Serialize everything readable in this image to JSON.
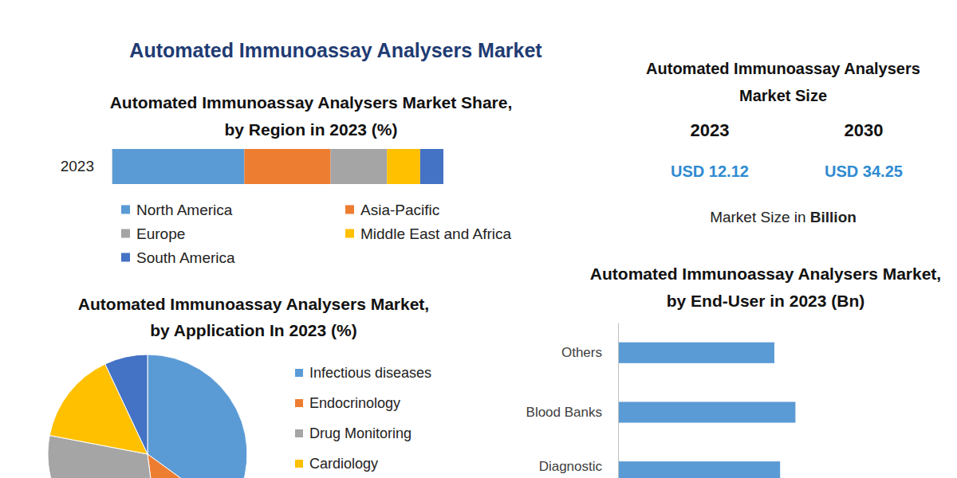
{
  "title": "Automated Immunoassay Analysers Market",
  "chart_data": [
    {
      "type": "bar",
      "title": "Automated Immunoassay Analysers Market Share, by Region in 2023 (%)",
      "orientation": "horizontal",
      "stacked": true,
      "categories": [
        "2023"
      ],
      "series": [
        {
          "name": "North America",
          "color": "#5b9bd5",
          "values": [
            40
          ]
        },
        {
          "name": "Asia-Pacific",
          "color": "#ed7d31",
          "values": [
            26
          ]
        },
        {
          "name": "Europe",
          "color": "#a5a5a5",
          "values": [
            17
          ]
        },
        {
          "name": "Middle East and Africa",
          "color": "#ffc000",
          "values": [
            10
          ]
        },
        {
          "name": "South America",
          "color": "#4472c4",
          "values": [
            7
          ]
        }
      ],
      "xlim": [
        0,
        100
      ],
      "tick_labels": "y",
      "legend": "bottom"
    },
    {
      "type": "kpi",
      "title": "Automated Immunoassay Analysers Market Size",
      "categories": [
        "2023",
        "2030"
      ],
      "values": [
        12.12,
        34.25
      ],
      "value_labels": [
        "USD 12.12",
        "USD 34.25"
      ],
      "subtitle": "Market Size in Billion",
      "color": "#2e8bd1"
    },
    {
      "type": "pie",
      "title": "Automated Immunoassay Analysers Market, by Application In 2023 (%)",
      "categories": [
        "Infectious diseases",
        "Endocrinology",
        "Drug Monitoring",
        "Cardiology",
        null
      ],
      "values": [
        35,
        13,
        30,
        15,
        7
      ],
      "colors": [
        "#5b9bd5",
        "#ed7d31",
        "#a5a5a5",
        "#ffc000",
        "#4472c4"
      ],
      "legend": "right"
    },
    {
      "type": "bar",
      "title": "Automated Immunoassay Analysers Market, by End-User in 2023 (Bn)",
      "orientation": "horizontal",
      "categories": [
        "Others",
        "Blood Banks",
        "Diagnostic"
      ],
      "values": [
        2.45,
        2.78,
        2.54
      ],
      "color": "#5b9bd5",
      "xlim": [
        0,
        5
      ],
      "tick_labels": "y"
    }
  ]
}
